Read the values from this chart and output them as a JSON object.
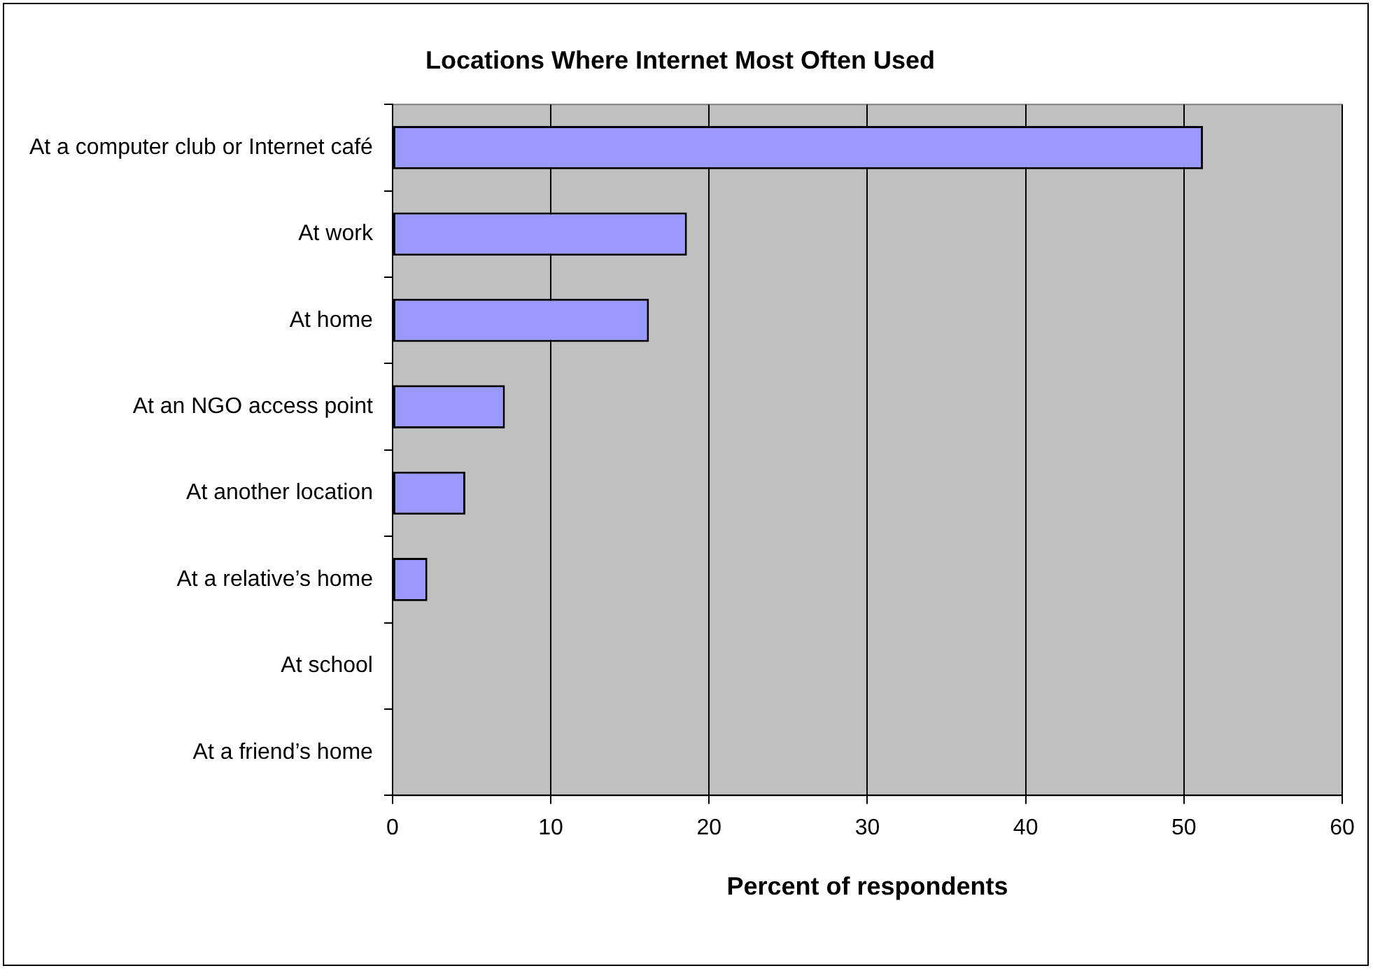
{
  "chart_data": {
    "type": "bar",
    "orientation": "horizontal",
    "title": "Locations Where Internet Most Often Used",
    "xlabel": "Percent of respondents",
    "categories": [
      "At a computer club or Internet café",
      "At work",
      "At home",
      "At an NGO access point",
      "At another location",
      "At a relative’s home",
      "At school",
      "At a friend’s home"
    ],
    "values": [
      51.2,
      18.6,
      16.2,
      7.1,
      4.6,
      2.2,
      0,
      0
    ],
    "color": "#9999ff",
    "xlim": [
      0,
      60
    ],
    "xticks": [
      0,
      10,
      20,
      30,
      40,
      50,
      60
    ],
    "grid": "x",
    "legend": false
  }
}
